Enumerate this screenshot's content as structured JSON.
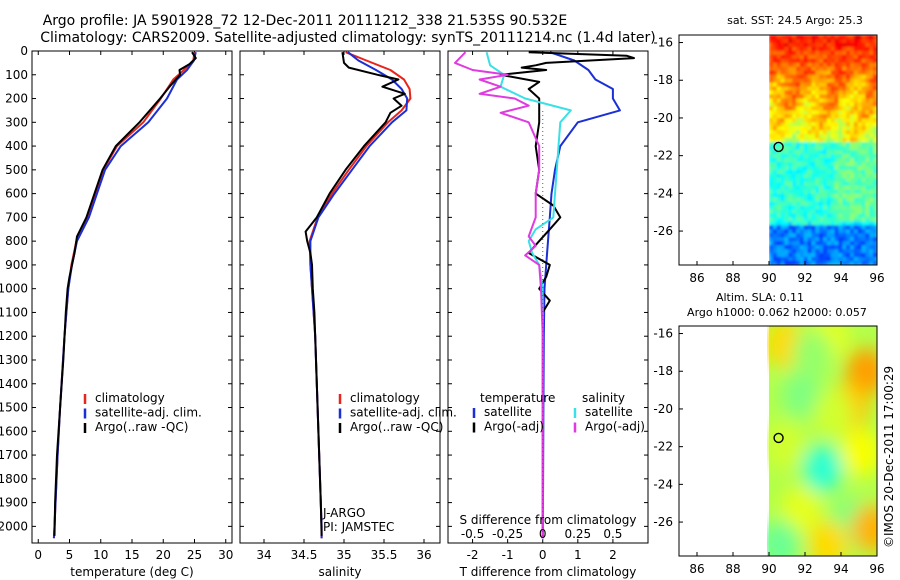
{
  "header": {
    "line1": "Argo profile: JA 5901928_72 12-Dec-2011 20111212_338 21.535S 90.532E",
    "line2": "Climatology: CARS2009. Satellite-adjusted climatology: synTS_20111214.nc (1.4d later)"
  },
  "credit": "©IMOS 20-Dec-2011 17:00:29",
  "colors": {
    "clim": "#e8241c",
    "sat": "#1a2fd6",
    "argo": "#000000",
    "sal_sat": "#39e0e6",
    "sal_argo": "#e03be0"
  },
  "chart_data": [
    {
      "type": "line",
      "title": "",
      "xlabel": "temperature (deg C)",
      "xlim": [
        -1,
        31
      ],
      "xticks": [
        0,
        5,
        10,
        15,
        20,
        25,
        30
      ],
      "ylim": [
        0,
        2070
      ],
      "yticks": [
        0,
        100,
        200,
        300,
        400,
        500,
        600,
        700,
        800,
        900,
        1000,
        1100,
        1200,
        1300,
        1400,
        1500,
        1600,
        1700,
        1800,
        1900,
        2000
      ],
      "legend": [
        "climatology",
        "satellite-adj. clim.",
        "Argo(..raw -QC)"
      ],
      "legend_position": "lower-middle",
      "series": [
        {
          "name": "climatology",
          "color": "clim",
          "depth": [
            5,
            40,
            80,
            120,
            200,
            300,
            400,
            500,
            600,
            700,
            800,
            900,
            1000,
            1200,
            1500,
            1700,
            2000,
            2050
          ],
          "values": [
            25.0,
            24.8,
            23.3,
            21.6,
            19.6,
            16.8,
            12.6,
            10.4,
            9.2,
            7.9,
            6.1,
            5.3,
            4.8,
            4.2,
            3.5,
            3.1,
            2.6,
            2.5
          ]
        },
        {
          "name": "satellite-adj. clim.",
          "color": "sat",
          "depth": [
            5,
            40,
            80,
            120,
            200,
            300,
            400,
            500,
            600,
            700,
            800,
            900,
            1000,
            1200,
            1500,
            1700,
            2000,
            2050
          ],
          "values": [
            25.2,
            24.9,
            23.8,
            22.2,
            20.6,
            17.6,
            13.2,
            10.7,
            9.4,
            8.1,
            6.2,
            5.4,
            4.8,
            4.2,
            3.5,
            3.1,
            2.6,
            2.5
          ]
        },
        {
          "name": "Argo(..raw -QC)",
          "color": "argo",
          "depth": [
            5,
            30,
            55,
            80,
            100,
            150,
            200,
            300,
            400,
            500,
            600,
            700,
            780,
            850,
            950,
            1000,
            1100,
            1300,
            1500,
            1700,
            1900,
            2040
          ],
          "values": [
            24.6,
            25.2,
            24.2,
            22.6,
            22.7,
            21.0,
            19.5,
            16.2,
            12.4,
            10.3,
            9.0,
            7.7,
            6.2,
            5.8,
            5.0,
            4.7,
            4.4,
            4.0,
            3.5,
            3.0,
            2.7,
            2.6
          ]
        }
      ]
    },
    {
      "type": "line",
      "title": "",
      "xlabel": "salinity",
      "xlim": [
        33.7,
        36.2
      ],
      "xticks": [
        34,
        34.5,
        35,
        35.5,
        36
      ],
      "ylim": [
        0,
        2070
      ],
      "legend": [
        "climatology",
        "satellite-adj. clim.",
        "Argo(..raw -QC)"
      ],
      "legend_position": "lower-middle",
      "annotations": [
        "J-ARGO",
        "PI: JAMSTEC"
      ],
      "series": [
        {
          "name": "climatology",
          "color": "clim",
          "depth": [
            5,
            40,
            80,
            120,
            160,
            200,
            250,
            300,
            400,
            500,
            600,
            700,
            800,
            900,
            1000,
            1200,
            1500,
            1700,
            2000,
            2050
          ],
          "values": [
            35.02,
            35.28,
            35.58,
            35.75,
            35.82,
            35.83,
            35.72,
            35.55,
            35.28,
            35.06,
            34.85,
            34.67,
            34.57,
            34.58,
            34.6,
            34.64,
            34.67,
            34.69,
            34.72,
            34.72
          ]
        },
        {
          "name": "satellite-adj. clim.",
          "color": "sat",
          "depth": [
            5,
            40,
            80,
            120,
            160,
            200,
            250,
            300,
            400,
            500,
            600,
            700,
            800,
            900,
            1000,
            1200,
            1500,
            1700,
            2000,
            2050
          ],
          "values": [
            35.05,
            35.18,
            35.4,
            35.6,
            35.72,
            35.79,
            35.78,
            35.6,
            35.32,
            35.1,
            34.88,
            34.68,
            34.58,
            34.58,
            34.6,
            34.64,
            34.67,
            34.69,
            34.72,
            34.72
          ]
        },
        {
          "name": "Argo(..raw -QC)",
          "color": "argo",
          "depth": [
            5,
            50,
            70,
            100,
            120,
            150,
            180,
            200,
            230,
            260,
            300,
            400,
            500,
            600,
            700,
            760,
            800,
            850,
            900,
            1000,
            1100,
            1300,
            1500,
            1700,
            1900,
            2040
          ],
          "values": [
            34.98,
            35.0,
            35.06,
            35.42,
            35.68,
            35.48,
            35.76,
            35.62,
            35.72,
            35.58,
            35.52,
            35.25,
            35.02,
            34.82,
            34.66,
            34.52,
            34.54,
            34.58,
            34.6,
            34.61,
            34.63,
            34.65,
            34.67,
            34.69,
            34.71,
            34.72
          ]
        }
      ]
    },
    {
      "type": "line",
      "title": "",
      "xlabel": "T difference from climatology",
      "xlabel_top": "S difference from climatology",
      "xlim": [
        -2.7,
        3.0
      ],
      "xticks": [
        -2,
        -1,
        0,
        1,
        2
      ],
      "xticks_secondary_labels": [
        "-0.5",
        "-0.25",
        "0",
        "0.25",
        "0.5"
      ],
      "xticks_secondary_values": [
        -2,
        -1,
        0,
        1,
        2
      ],
      "ylim": [
        0,
        2070
      ],
      "legend": {
        "temperature": [
          "satellite",
          "Argo(-adj)"
        ],
        "salinity": [
          "satellite",
          "Argo(-adj)"
        ]
      },
      "legend_headers": [
        "temperature",
        "salinity"
      ],
      "series": [
        {
          "name": "temperature satellite",
          "color": "sat",
          "depth": [
            5,
            40,
            80,
            120,
            160,
            200,
            250,
            300,
            400,
            500,
            600,
            700,
            800,
            900,
            1000,
            1200,
            1500,
            1800,
            2050
          ],
          "values": [
            0.2,
            0.9,
            1.3,
            1.5,
            2.0,
            2.0,
            2.2,
            1.0,
            0.5,
            0.35,
            0.25,
            0.2,
            0.15,
            0.1,
            0.05,
            0.03,
            0.02,
            0.01,
            0.0
          ]
        },
        {
          "name": "temperature Argo(-adj)",
          "color": "argo",
          "depth": [
            5,
            20,
            30,
            50,
            60,
            70,
            80,
            100,
            130,
            160,
            200,
            300,
            400,
            500,
            600,
            650,
            700,
            750,
            800,
            850,
            900,
            950,
            1000,
            1050,
            1100,
            1300,
            1500,
            1800,
            2050
          ],
          "values": [
            -0.4,
            2.4,
            2.6,
            0.1,
            -0.2,
            -0.6,
            0.1,
            -1.2,
            -0.1,
            -0.4,
            -0.1,
            -0.1,
            -0.2,
            -0.1,
            -0.2,
            0.3,
            0.5,
            0.2,
            -0.1,
            -0.4,
            0.2,
            0.1,
            -0.1,
            0.2,
            0.0,
            0.0,
            0.0,
            0.0,
            0.0
          ]
        },
        {
          "name": "salinity satellite",
          "color": "sal_sat",
          "depth": [
            5,
            60,
            100,
            150,
            200,
            250,
            300,
            400,
            500,
            600,
            700,
            750,
            800,
            850,
            900,
            1000,
            1200,
            1500,
            1800,
            2050
          ],
          "values": [
            -1.6,
            -1.5,
            -1.1,
            -1.2,
            -0.5,
            0.8,
            0.5,
            0.45,
            0.4,
            0.35,
            0.3,
            -0.2,
            -0.4,
            -0.3,
            -0.1,
            0.0,
            0.0,
            0.0,
            0.0,
            0.0
          ]
        },
        {
          "name": "salinity Argo(-adj)",
          "color": "sal_argo",
          "depth": [
            5,
            50,
            80,
            100,
            120,
            150,
            180,
            200,
            230,
            260,
            300,
            400,
            500,
            600,
            700,
            780,
            820,
            860,
            900,
            1000,
            1200,
            1500,
            1800,
            2050
          ],
          "values": [
            -2.2,
            -2.5,
            -2.0,
            -1.0,
            -1.8,
            -1.2,
            -1.8,
            -0.8,
            -0.4,
            -1.2,
            -0.4,
            -0.1,
            -0.1,
            -0.2,
            -0.2,
            -0.4,
            -0.2,
            -0.5,
            -0.1,
            -0.05,
            0.0,
            0.0,
            0.0,
            0.0
          ]
        }
      ]
    },
    {
      "type": "heatmap",
      "title": "sat. SST: 24.5 Argo: 25.3",
      "xlim": [
        85,
        96
      ],
      "ylim": [
        -27.8,
        -15.6
      ],
      "xticks": [
        86,
        88,
        90,
        92,
        94,
        96
      ],
      "yticks": [
        -16,
        -18,
        -20,
        -22,
        -24,
        -26
      ],
      "data_lon_min": 90,
      "marker": {
        "lon": 90.532,
        "lat": -21.535
      }
    },
    {
      "type": "heatmap",
      "title": "Altim. SLA: 0.11",
      "subtitle": "Argo h1000: 0.062 h2000: 0.057",
      "xlim": [
        85,
        96
      ],
      "ylim": [
        -27.8,
        -15.6
      ],
      "xticks": [
        86,
        88,
        90,
        92,
        94,
        96
      ],
      "yticks": [
        -16,
        -18,
        -20,
        -22,
        -24,
        -26
      ],
      "data_lon_min": 90,
      "marker": {
        "lon": 90.532,
        "lat": -21.535
      }
    }
  ]
}
